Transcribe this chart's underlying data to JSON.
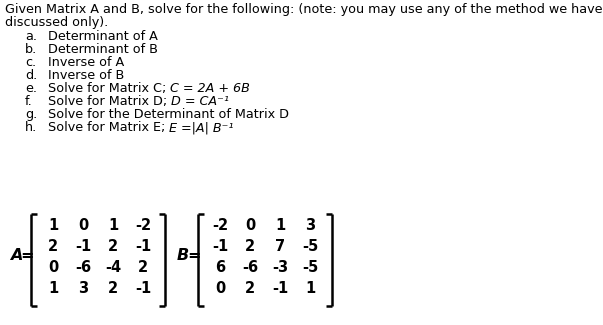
{
  "title_line1": "Given Matrix A and B, solve for the following: (note: you may use any of the method we have",
  "title_line2": "discussed only).",
  "items_plain": [
    [
      "a.",
      "Determinant of A"
    ],
    [
      "b.",
      "Determinant of B"
    ],
    [
      "c.",
      "Inverse of A"
    ],
    [
      "d.",
      "Inverse of B"
    ]
  ],
  "items_mixed": [
    [
      "e.",
      "Solve for Matrix C; ",
      "C = 2A + 6B"
    ],
    [
      "f.",
      "Solve for Matrix D; ",
      "D = CA⁻¹"
    ],
    [
      "g.",
      "Solve for the Determinant of Matrix D",
      ""
    ],
    [
      "h.",
      "Solve for Matrix E; ",
      "E =|A| B⁻¹"
    ]
  ],
  "matrix_A": [
    [
      1,
      0,
      1,
      -2
    ],
    [
      2,
      -1,
      2,
      -1
    ],
    [
      0,
      -6,
      -4,
      2
    ],
    [
      1,
      3,
      2,
      -1
    ]
  ],
  "matrix_B": [
    [
      -2,
      0,
      1,
      3
    ],
    [
      -1,
      2,
      7,
      -5
    ],
    [
      6,
      -6,
      -3,
      -5
    ],
    [
      0,
      2,
      -1,
      1
    ]
  ],
  "bg_color": "#ffffff",
  "text_color": "#000000",
  "title_fs": 9.2,
  "item_fs": 9.2,
  "matrix_fs": 10.5,
  "label_fs": 11.5
}
